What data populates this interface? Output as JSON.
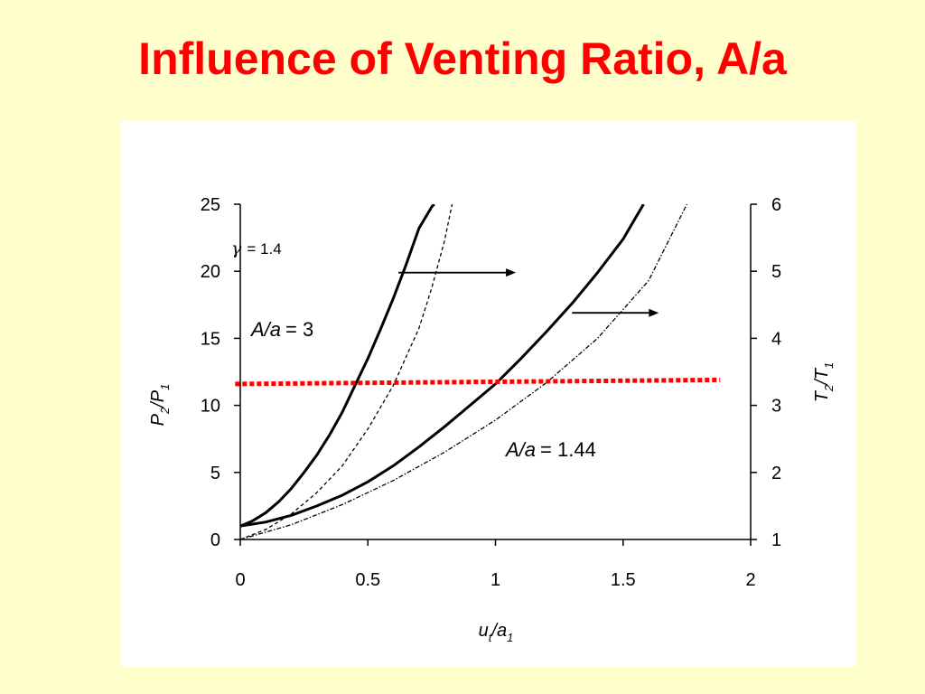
{
  "slide": {
    "title": "Influence of Venting Ratio, A/a",
    "title_color": "#ff0000",
    "background": "#ffffcc"
  },
  "chart_data": {
    "type": "line",
    "x_axis": {
      "label": "u t /a 1",
      "range": [
        0,
        2
      ],
      "ticks": [
        0,
        0.5,
        1,
        1.5,
        2
      ],
      "tick_labels": [
        "0",
        "0.5",
        "1",
        "1.5",
        "2"
      ]
    },
    "y_axis_left": {
      "label": "P2/P1",
      "range": [
        0,
        25
      ],
      "ticks": [
        0,
        5,
        10,
        15,
        20,
        25
      ],
      "tick_labels": [
        "0",
        "5",
        "10",
        "15",
        "20",
        "25"
      ]
    },
    "y_axis_right": {
      "label": "T2/T1",
      "range": [
        1,
        6
      ],
      "ticks": [
        1,
        2,
        3,
        4,
        5,
        6
      ],
      "tick_labels": [
        "1",
        "2",
        "3",
        "4",
        "5",
        "6"
      ]
    },
    "grid": false,
    "annotations": {
      "gamma": {
        "symbol": "γ",
        "text": "= 1.4"
      },
      "ratio_high": {
        "prefix": "A/a",
        "value": "= 3"
      },
      "ratio_low": {
        "prefix": "A/a",
        "value": "= 1.44"
      }
    },
    "series": [
      {
        "axis": "left",
        "style": "solid",
        "color": "#000000",
        "x": [
          0,
          0.05,
          0.1,
          0.15,
          0.2,
          0.25,
          0.3,
          0.35,
          0.4,
          0.45,
          0.5,
          0.55,
          0.6,
          0.65,
          0.7,
          0.75,
          0.76
        ],
        "y": [
          1.0,
          1.4,
          2.0,
          2.8,
          3.8,
          5.0,
          6.3,
          7.8,
          9.5,
          11.5,
          13.5,
          15.7,
          18.0,
          20.5,
          23.2,
          24.8,
          25
        ]
      },
      {
        "axis": "right",
        "style": "dashed",
        "color": "#000000",
        "x": [
          0,
          0.1,
          0.2,
          0.3,
          0.4,
          0.5,
          0.6,
          0.7,
          0.75,
          0.8,
          0.83
        ],
        "y": [
          1.0,
          1.15,
          1.38,
          1.7,
          2.1,
          2.65,
          3.3,
          4.15,
          4.75,
          5.45,
          6.0
        ]
      },
      {
        "axis": "left",
        "style": "solid",
        "color": "#000000",
        "x": [
          0,
          0.1,
          0.2,
          0.3,
          0.4,
          0.5,
          0.6,
          0.7,
          0.8,
          0.9,
          1.0,
          1.1,
          1.2,
          1.3,
          1.4,
          1.5,
          1.58
        ],
        "y": [
          1.0,
          1.3,
          1.8,
          2.5,
          3.3,
          4.3,
          5.5,
          6.9,
          8.4,
          10.0,
          11.6,
          13.5,
          15.5,
          17.6,
          19.9,
          22.4,
          25
        ]
      },
      {
        "axis": "right",
        "style": "dash-dot",
        "color": "#000000",
        "x": [
          0,
          0.2,
          0.4,
          0.6,
          0.8,
          1.0,
          1.2,
          1.4,
          1.6,
          1.75
        ],
        "y": [
          1.0,
          1.22,
          1.52,
          1.88,
          2.3,
          2.78,
          3.34,
          4.0,
          4.86,
          6.0
        ]
      },
      {
        "axis": "left",
        "style": "thick-dotted",
        "color": "#ff0000",
        "x": [
          -0.02,
          1.88
        ],
        "y": [
          11.6,
          11.9
        ]
      }
    ],
    "arrows": [
      {
        "direction": "right",
        "x1": 0.62,
        "x2": 1.08,
        "y": 19.9,
        "axis": "left"
      },
      {
        "direction": "right",
        "x1": 1.3,
        "x2": 1.64,
        "y": 16.9,
        "axis": "left"
      }
    ]
  }
}
